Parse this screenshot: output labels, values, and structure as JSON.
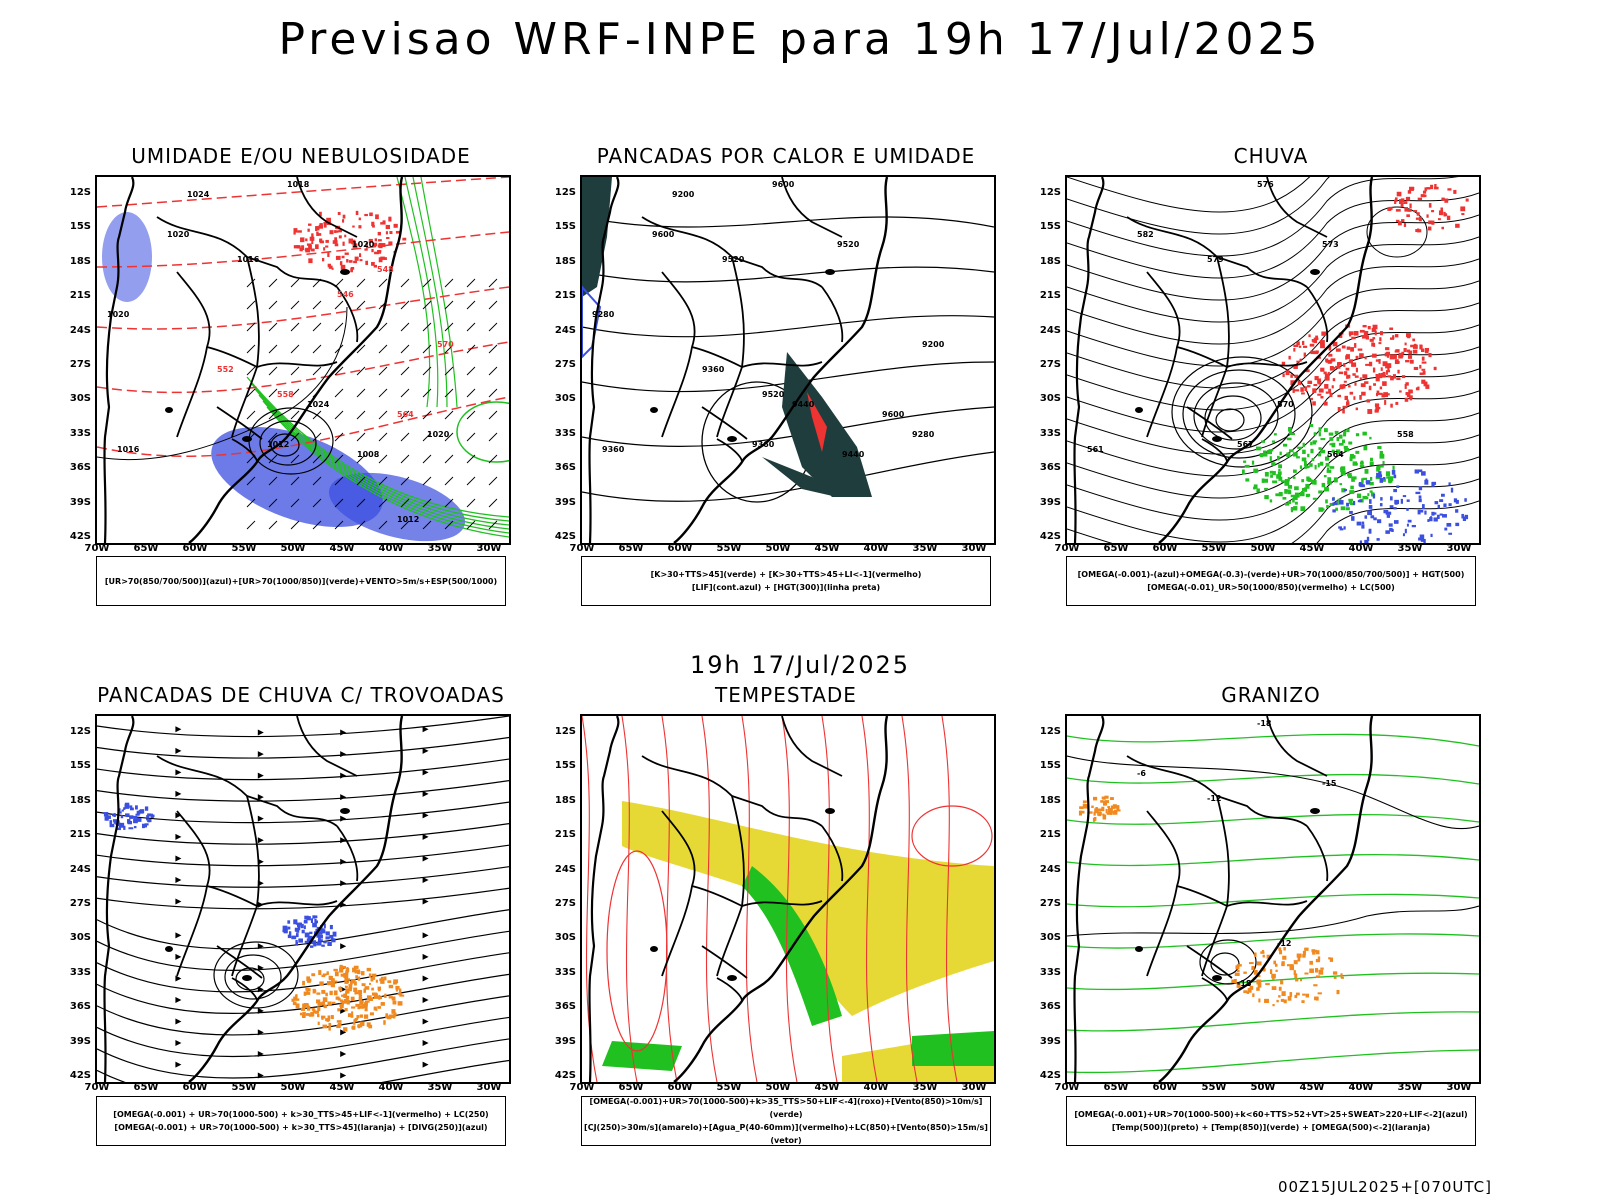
{
  "title": "Previsao WRF-INPE  para 19h 17/Jul/2025",
  "subtitle": "19h 17/Jul/2025",
  "footer": "00Z15JUL2025+[070UTC]",
  "lat_labels": [
    "12S",
    "15S",
    "18S",
    "21S",
    "24S",
    "27S",
    "30S",
    "33S",
    "36S",
    "39S",
    "42S"
  ],
  "lon_labels": [
    "70W",
    "65W",
    "60W",
    "55W",
    "50W",
    "45W",
    "40W",
    "35W",
    "30W"
  ],
  "panels": [
    {
      "title": "UMIDADE E/OU NEBULOSIDADE",
      "legend": [
        "[UR>70(850/700/500)](azul)+[UR>70(1000/850)](verde)+VENTO>5m/s+ESP(500/1000)"
      ],
      "contour_labels": [
        "1020",
        "1016",
        "1018",
        "1020",
        "1024",
        "1012",
        "1008",
        "1016",
        "1020",
        "1024",
        "1020",
        "570",
        "564",
        "558",
        "552",
        "548",
        "546",
        "1012"
      ]
    },
    {
      "title": "PANCADAS POR CALOR E UMIDADE",
      "legend": [
        "[K>30+TTS>45](verde) + [K>30+TTS>45+LI<-1](vermelho)",
        "[LIF](cont.azul) + [HGT(300)](linha preta)"
      ],
      "contour_labels": [
        "9600",
        "9520",
        "9600",
        "9520",
        "9440",
        "9360",
        "9440",
        "9360",
        "9280",
        "9200",
        "9280",
        "9200",
        "9600",
        "9520",
        "9360"
      ]
    },
    {
      "title": "CHUVA",
      "legend": [
        "[OMEGA(-0.001)-(azul)+OMEGA(-0.3)-(verde)+UR>70(1000/850/700/500)] + HGT(500)",
        "[OMEGA(-0.01)_UR>50(1000/850)(vermelho) + LC(500)"
      ],
      "contour_labels": [
        "582",
        "579",
        "576",
        "573",
        "570",
        "567",
        "564",
        "561",
        "558"
      ]
    },
    {
      "title": "PANCADAS DE CHUVA C/ TROVOADAS",
      "legend": [
        "[OMEGA(-0.001) + UR>70(1000-500) + k>30_TTS>45+LIF<-1](vermelho) + LC(250)",
        "[OMEGA(-0.001) + UR>70(1000-500) + k>30_TTS>45](laranja) + [DIVG(250)](azul)"
      ],
      "contour_labels": []
    },
    {
      "title": "TEMPESTADE",
      "legend": [
        "[OMEGA(-0.001)+UR>70(1000-500)+k>35_TTS>50+LIF<-4](roxo)+[Vento(850)>10m/s](verde)",
        "[CJ(250)>30m/s](amarelo)+[Agua_P(40-60mm)](vermelho)+LC(850)+[Vento(850)>15m/s](vetor)"
      ],
      "contour_labels": []
    },
    {
      "title": "GRANIZO",
      "legend": [
        "[OMEGA(-0.001)+UR>70(1000-500)+k<60+TTS>52+VT>25+SWEAT>220+LIF<-2](azul)",
        "[Temp(500)](preto) + [Temp(850)](verde) + [OMEGA(500)<-2](laranja)"
      ],
      "contour_labels": [
        "-6",
        "-12",
        "-18",
        "-15",
        "-12",
        "-18"
      ]
    }
  ],
  "colors": {
    "azul": "#3b4fe0",
    "verde": "#20c020",
    "vermelho": "#ee3333",
    "laranja": "#f08a20",
    "amarelo": "#e6d936",
    "teal": "#1f3d3d"
  }
}
